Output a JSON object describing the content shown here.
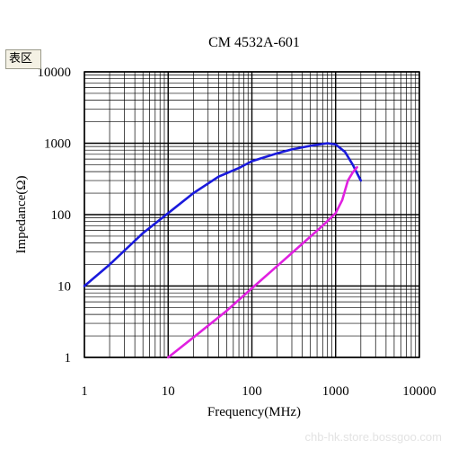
{
  "tag": {
    "label": "表区"
  },
  "watermark": "chb-hk.store.bossgoo.com",
  "chart_data": {
    "type": "line",
    "title": "CM 4532A-601",
    "xlabel": "Frequency(MHz)",
    "ylabel": "Impedance(Ω)",
    "xscale": "log",
    "yscale": "log",
    "xlim": [
      1,
      10000
    ],
    "ylim": [
      1,
      10000
    ],
    "x_ticks": [
      "1",
      "10",
      "100",
      "1000",
      "10000"
    ],
    "y_ticks": [
      "1",
      "10",
      "100",
      "1000",
      "10000"
    ],
    "grid": true,
    "series": [
      {
        "color": "#1a1adc",
        "points": [
          [
            1,
            10
          ],
          [
            2,
            20
          ],
          [
            5,
            55
          ],
          [
            10,
            105
          ],
          [
            20,
            200
          ],
          [
            40,
            340
          ],
          [
            70,
            450
          ],
          [
            100,
            560
          ],
          [
            200,
            720
          ],
          [
            300,
            820
          ],
          [
            500,
            920
          ],
          [
            800,
            1000
          ],
          [
            1000,
            960
          ],
          [
            1300,
            750
          ],
          [
            1600,
            500
          ],
          [
            2000,
            300
          ]
        ]
      },
      {
        "color": "#e020e0",
        "points": [
          [
            10,
            1
          ],
          [
            20,
            1.9
          ],
          [
            50,
            4.5
          ],
          [
            100,
            9.3
          ],
          [
            200,
            19
          ],
          [
            400,
            39
          ],
          [
            700,
            70
          ],
          [
            1000,
            105
          ],
          [
            1200,
            160
          ],
          [
            1400,
            300
          ],
          [
            1600,
            390
          ],
          [
            1800,
            460
          ]
        ]
      }
    ]
  }
}
